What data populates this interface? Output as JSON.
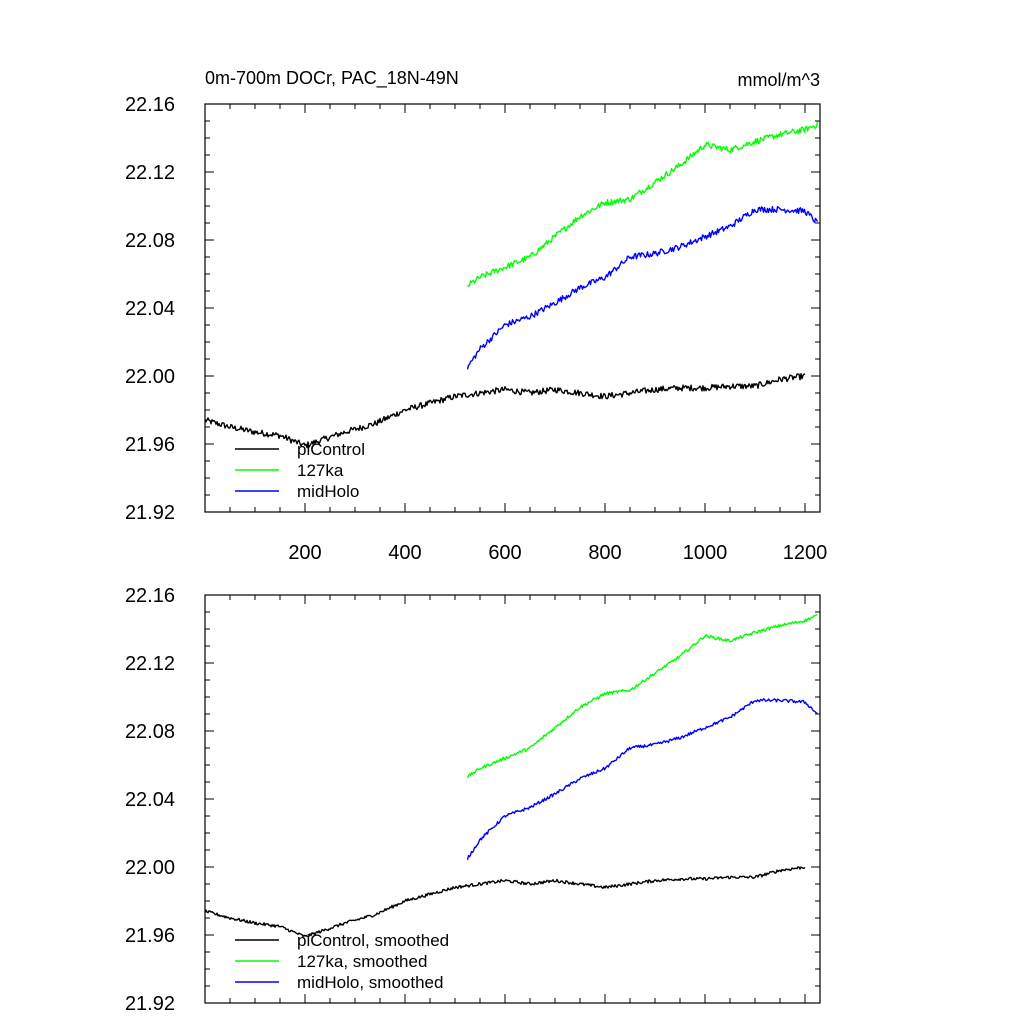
{
  "chart_data": [
    {
      "type": "line",
      "title": "0m-700m DOCr, PAC_18N-49N",
      "units": "mmol/m^3",
      "xlim": [
        0,
        1230
      ],
      "ylim": [
        21.92,
        22.16
      ],
      "xticks": [
        "200",
        "400",
        "600",
        "800",
        "1000",
        "1200"
      ],
      "yticks": [
        "21.92",
        "21.96",
        "22.00",
        "22.04",
        "22.08",
        "22.12",
        "22.16"
      ],
      "legend_position": "lower-left",
      "series": [
        {
          "name": "piControl",
          "color": "#000000",
          "x": [
            0,
            50,
            100,
            150,
            200,
            230,
            280,
            340,
            400,
            450,
            500,
            550,
            600,
            650,
            700,
            750,
            800,
            850,
            900,
            950,
            1000,
            1050,
            1100,
            1150,
            1200
          ],
          "y": [
            21.974,
            21.97,
            21.967,
            21.965,
            21.959,
            21.962,
            21.967,
            21.972,
            21.98,
            21.984,
            21.988,
            21.99,
            21.992,
            21.99,
            21.992,
            21.99,
            21.988,
            21.99,
            21.992,
            21.993,
            21.993,
            21.994,
            21.994,
            21.998,
            22.0
          ]
        },
        {
          "name": "127ka",
          "color": "#00ff00",
          "x": [
            525,
            550,
            600,
            650,
            700,
            750,
            800,
            850,
            900,
            950,
            1000,
            1050,
            1100,
            1150,
            1200,
            1225
          ],
          "y": [
            22.053,
            22.058,
            22.064,
            22.07,
            22.082,
            22.094,
            22.102,
            22.104,
            22.114,
            22.124,
            22.136,
            22.133,
            22.138,
            22.142,
            22.145,
            22.148
          ]
        },
        {
          "name": "midHolo",
          "color": "#0000ff",
          "x": [
            525,
            550,
            600,
            650,
            700,
            750,
            800,
            850,
            900,
            950,
            1000,
            1050,
            1100,
            1150,
            1200,
            1225
          ],
          "y": [
            22.005,
            22.016,
            22.03,
            22.035,
            22.043,
            22.052,
            22.058,
            22.07,
            22.072,
            22.076,
            22.082,
            22.088,
            22.098,
            22.098,
            22.097,
            22.09
          ]
        }
      ]
    },
    {
      "type": "line",
      "xlim": [
        0,
        1230
      ],
      "ylim": [
        21.92,
        22.16
      ],
      "yticks": [
        "21.92",
        "21.96",
        "22.00",
        "22.04",
        "22.08",
        "22.12",
        "22.16"
      ],
      "legend_position": "lower-left",
      "series": [
        {
          "name": "piControl, smoothed",
          "color": "#000000",
          "x": [
            0,
            50,
            100,
            150,
            200,
            230,
            280,
            340,
            400,
            450,
            500,
            550,
            600,
            650,
            700,
            750,
            800,
            850,
            900,
            950,
            1000,
            1050,
            1100,
            1150,
            1200
          ],
          "y": [
            21.974,
            21.97,
            21.967,
            21.965,
            21.959,
            21.962,
            21.967,
            21.972,
            21.98,
            21.984,
            21.988,
            21.99,
            21.992,
            21.99,
            21.992,
            21.99,
            21.988,
            21.99,
            21.992,
            21.993,
            21.993,
            21.994,
            21.994,
            21.998,
            22.0
          ]
        },
        {
          "name": "127ka, smoothed",
          "color": "#00ff00",
          "x": [
            525,
            550,
            600,
            650,
            700,
            750,
            800,
            850,
            900,
            950,
            1000,
            1050,
            1100,
            1150,
            1200,
            1225
          ],
          "y": [
            22.053,
            22.058,
            22.064,
            22.07,
            22.082,
            22.094,
            22.102,
            22.104,
            22.114,
            22.124,
            22.136,
            22.133,
            22.138,
            22.142,
            22.145,
            22.148
          ]
        },
        {
          "name": "midHolo, smoothed",
          "color": "#0000ff",
          "x": [
            525,
            550,
            600,
            650,
            700,
            750,
            800,
            850,
            900,
            950,
            1000,
            1050,
            1100,
            1150,
            1200,
            1225
          ],
          "y": [
            22.005,
            22.016,
            22.03,
            22.035,
            22.043,
            22.052,
            22.058,
            22.07,
            22.072,
            22.076,
            22.082,
            22.088,
            22.098,
            22.098,
            22.097,
            22.09
          ]
        }
      ]
    }
  ]
}
